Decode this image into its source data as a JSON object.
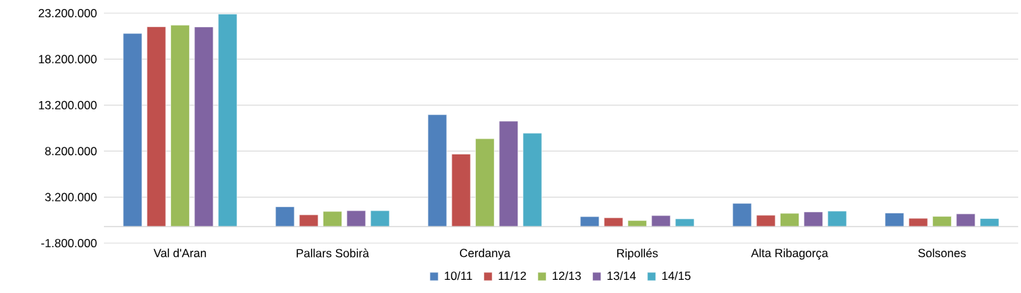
{
  "chart_data": {
    "type": "bar",
    "categories": [
      "Val d'Aran",
      "Pallars Sobirà",
      "Cerdanya",
      "Ripollés",
      "Alta Ribagorça",
      "Solsones"
    ],
    "series": [
      {
        "name": "10/11",
        "color": "#4f81bd",
        "values": [
          21000000,
          2150000,
          12160000,
          1080000,
          2520000,
          1470000
        ]
      },
      {
        "name": "11/12",
        "color": "#c0504d",
        "values": [
          21720000,
          1280000,
          7880000,
          960000,
          1230000,
          900000
        ]
      },
      {
        "name": "12/13",
        "color": "#9bbb59",
        "values": [
          21900000,
          1650000,
          9560000,
          660000,
          1440000,
          1110000
        ]
      },
      {
        "name": "13/14",
        "color": "#8064a2",
        "values": [
          21700000,
          1730000,
          11460000,
          1200000,
          1590000,
          1380000
        ]
      },
      {
        "name": "14/15",
        "color": "#4bacc6",
        "values": [
          23100000,
          1730000,
          10160000,
          840000,
          1680000,
          870000
        ]
      }
    ],
    "ylim": [
      -1800000,
      23200000
    ],
    "yticks": [
      {
        "value": -1800000,
        "label": "-1.800.000"
      },
      {
        "value": 3200000,
        "label": "3.200.000"
      },
      {
        "value": 8200000,
        "label": "8.200.000"
      },
      {
        "value": 13200000,
        "label": "13.200.000"
      },
      {
        "value": 18200000,
        "label": "18.200.000"
      },
      {
        "value": 23200000,
        "label": "23.200.000"
      }
    ],
    "grid": "y",
    "legend": "bottom"
  }
}
